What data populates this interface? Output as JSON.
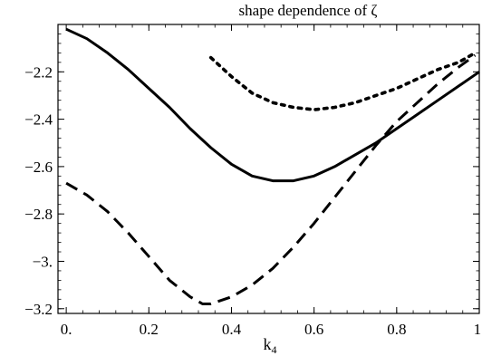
{
  "chart_data": {
    "type": "line",
    "title": "shape dependence of ζ",
    "xlabel": "k",
    "xlabel_sub": "4",
    "ylabel": "",
    "xlim": [
      -0.02,
      1.0
    ],
    "ylim": [
      -3.22,
      -2.0
    ],
    "x_ticks": [
      0.0,
      0.2,
      0.4,
      0.6,
      0.8,
      1.0
    ],
    "x_tick_labels": [
      "0.",
      "0.2",
      "0.4",
      "0.6",
      "0.8",
      "1."
    ],
    "y_ticks": [
      -2.2,
      -2.4,
      -2.6,
      -2.8,
      -3.0,
      -3.2
    ],
    "y_tick_labels": [
      "-2.2",
      "-2.4",
      "-2.6",
      "-2.8",
      "-3.",
      "-3.2"
    ],
    "grid": false,
    "legend": "none",
    "series": [
      {
        "style": "solid",
        "color": "#000000",
        "x": [
          0.0,
          0.05,
          0.1,
          0.15,
          0.2,
          0.25,
          0.3,
          0.35,
          0.4,
          0.45,
          0.5,
          0.55,
          0.6,
          0.65,
          0.7,
          0.75,
          0.8,
          0.85,
          0.9,
          0.95,
          1.0
        ],
        "y": [
          -2.02,
          -2.06,
          -2.12,
          -2.19,
          -2.27,
          -2.35,
          -2.44,
          -2.52,
          -2.59,
          -2.64,
          -2.66,
          -2.66,
          -2.64,
          -2.6,
          -2.55,
          -2.5,
          -2.44,
          -2.38,
          -2.32,
          -2.26,
          -2.2
        ]
      },
      {
        "style": "dashed",
        "color": "#000000",
        "x": [
          0.0,
          0.05,
          0.1,
          0.15,
          0.2,
          0.25,
          0.3,
          0.33,
          0.35,
          0.4,
          0.45,
          0.5,
          0.55,
          0.6,
          0.65,
          0.7,
          0.75,
          0.8,
          0.85,
          0.9,
          0.95,
          0.99
        ],
        "y": [
          -2.67,
          -2.72,
          -2.79,
          -2.88,
          -2.98,
          -3.08,
          -3.15,
          -3.18,
          -3.18,
          -3.15,
          -3.1,
          -3.03,
          -2.94,
          -2.84,
          -2.73,
          -2.62,
          -2.51,
          -2.41,
          -2.33,
          -2.25,
          -2.18,
          -2.13
        ]
      },
      {
        "style": "dotted",
        "color": "#000000",
        "x": [
          0.35,
          0.4,
          0.45,
          0.5,
          0.55,
          0.6,
          0.65,
          0.7,
          0.75,
          0.8,
          0.85,
          0.9,
          0.95,
          0.99
        ],
        "y": [
          -2.14,
          -2.22,
          -2.29,
          -2.33,
          -2.35,
          -2.36,
          -2.35,
          -2.33,
          -2.3,
          -2.27,
          -2.23,
          -2.19,
          -2.16,
          -2.12
        ]
      }
    ]
  }
}
